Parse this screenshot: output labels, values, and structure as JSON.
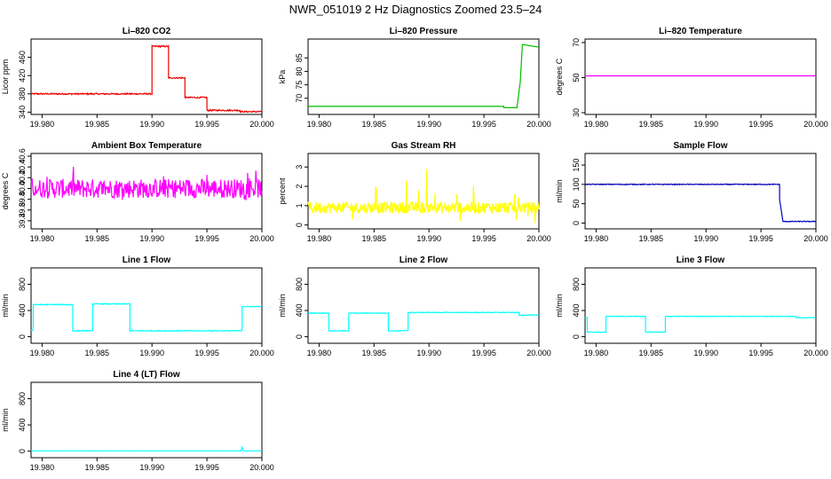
{
  "figure_title": "NWR_051019  2 Hz Diagnostics Zoomed 23.5–24",
  "chart_data": [
    {
      "type": "line",
      "title": "Li–820 CO2",
      "ylabel": "Licor ppm",
      "color": "#ee0000",
      "xlim": [
        19.979,
        20.0
      ],
      "ylim": [
        335,
        500
      ],
      "xticks": [
        "19.980",
        "19.985",
        "19.990",
        "19.995",
        "20.000"
      ],
      "yticks": [
        "340",
        "380",
        "420",
        "460"
      ],
      "series": [
        {
          "name": "CO2",
          "x": [
            19.979,
            19.99,
            19.99,
            19.9915,
            19.9915,
            19.993,
            19.993,
            19.995,
            19.995,
            19.998,
            19.998,
            20.0
          ],
          "y": [
            380,
            380,
            484,
            484,
            415,
            415,
            372,
            372,
            344,
            344,
            341,
            341
          ],
          "noise": 1.5
        }
      ]
    },
    {
      "type": "line",
      "title": "Li–820 Pressure",
      "ylabel": "kPa",
      "color": "#00bb00",
      "xlim": [
        19.979,
        20.0
      ],
      "ylim": [
        64,
        92
      ],
      "xticks": [
        "19.980",
        "19.985",
        "19.990",
        "19.995",
        "20.000"
      ],
      "yticks": [
        "70",
        "75",
        "80",
        "85"
      ],
      "series": [
        {
          "name": "Pressure",
          "x": [
            19.979,
            19.9968,
            19.9968,
            19.998,
            19.9983,
            19.9985,
            19.9992,
            20.0
          ],
          "y": [
            67,
            67,
            66.5,
            66.5,
            76,
            90,
            89.5,
            89
          ],
          "noise": 0
        }
      ]
    },
    {
      "type": "line",
      "title": "Li–820 Temperature",
      "ylabel": "degrees C",
      "color": "#ff00ff",
      "xlim": [
        19.979,
        20.0
      ],
      "ylim": [
        29,
        72
      ],
      "xticks": [
        "19.980",
        "19.985",
        "19.990",
        "19.995",
        "20.000"
      ],
      "yticks": [
        "30",
        "50",
        "70"
      ],
      "series": [
        {
          "name": "Temperature",
          "x": [
            19.979,
            20.0
          ],
          "y": [
            51,
            51
          ],
          "noise": 0
        }
      ]
    },
    {
      "type": "line",
      "title": "Ambient Box Temperature",
      "ylabel": "degrees C",
      "color": "#ff00ff",
      "xlim": [
        19.979,
        20.0
      ],
      "ylim": [
        39.25,
        40.65
      ],
      "xticks": [
        "19.980",
        "19.985",
        "19.990",
        "19.995",
        "20.000"
      ],
      "yticks": [
        "39.4",
        "39.6",
        "39.8",
        "40.0",
        "40.2",
        "40.4",
        "40.6"
      ],
      "series": [
        {
          "name": "Box Temp",
          "x": [
            19.979,
            20.0
          ],
          "y": [
            40.0,
            40.0
          ],
          "noise": 0.18,
          "spikes": 0.38
        }
      ]
    },
    {
      "type": "line",
      "title": "Gas Stream RH",
      "ylabel": "percent",
      "color": "#ffff00",
      "xlim": [
        19.979,
        20.0
      ],
      "ylim": [
        -0.2,
        3.7
      ],
      "xticks": [
        "19.980",
        "19.985",
        "19.990",
        "19.995",
        "20.000"
      ],
      "yticks": [
        "0",
        "1",
        "2",
        "3"
      ],
      "series": [
        {
          "name": "RH",
          "x": [
            19.979,
            20.0
          ],
          "y": [
            0.9,
            0.9
          ],
          "noise": 0.3,
          "spikes": 2.6,
          "floor": 0
        }
      ]
    },
    {
      "type": "line",
      "title": "Sample Flow",
      "ylabel": "ml/min",
      "color": "#0000bb",
      "xlim": [
        19.979,
        20.0
      ],
      "ylim": [
        -15,
        180
      ],
      "xticks": [
        "19.980",
        "19.985",
        "19.990",
        "19.995",
        "20.000"
      ],
      "yticks": [
        "0",
        "50",
        "100",
        "150"
      ],
      "series": [
        {
          "name": "Sample Flow",
          "x": [
            19.979,
            19.9967,
            19.9967,
            19.997,
            19.997,
            20.0
          ],
          "y": [
            100,
            100,
            60,
            5,
            4,
            4
          ],
          "noise": 1
        }
      ]
    },
    {
      "type": "line",
      "title": "Line 1 Flow",
      "ylabel": "ml/min",
      "color": "#00ffff",
      "xlim": [
        19.979,
        20.0
      ],
      "ylim": [
        -100,
        1050
      ],
      "xticks": [
        "19.980",
        "19.985",
        "19.990",
        "19.995",
        "20.000"
      ],
      "yticks": [
        "0",
        "400",
        "800"
      ],
      "series": [
        {
          "name": "Line 1",
          "x": [
            19.979,
            19.9792,
            19.9792,
            19.9828,
            19.9828,
            19.9846,
            19.9846,
            19.988,
            19.988,
            19.9982,
            19.9982,
            20.0
          ],
          "y": [
            100,
            100,
            490,
            490,
            90,
            90,
            500,
            500,
            90,
            90,
            460,
            460
          ],
          "noise": 6
        }
      ]
    },
    {
      "type": "line",
      "title": "Line 2 Flow",
      "ylabel": "ml/min",
      "color": "#00ffff",
      "xlim": [
        19.979,
        20.0
      ],
      "ylim": [
        -100,
        1050
      ],
      "xticks": [
        "19.980",
        "19.985",
        "19.990",
        "19.995",
        "20.000"
      ],
      "yticks": [
        "0",
        "400",
        "800"
      ],
      "series": [
        {
          "name": "Line 2",
          "x": [
            19.979,
            19.9809,
            19.9809,
            19.9827,
            19.9827,
            19.9863,
            19.9863,
            19.9881,
            19.9881,
            19.9982,
            19.9982,
            20.0
          ],
          "y": [
            360,
            360,
            90,
            90,
            360,
            360,
            90,
            90,
            370,
            370,
            330,
            330
          ],
          "noise": 5
        }
      ]
    },
    {
      "type": "line",
      "title": "Line 3 Flow",
      "ylabel": "ml/min",
      "color": "#00ffff",
      "xlim": [
        19.979,
        20.0
      ],
      "ylim": [
        -100,
        1050
      ],
      "xticks": [
        "19.980",
        "19.985",
        "19.990",
        "19.995",
        "20.000"
      ],
      "yticks": [
        "0",
        "400",
        "800"
      ],
      "series": [
        {
          "name": "Line 3",
          "x": [
            19.979,
            19.9792,
            19.9792,
            19.9809,
            19.9809,
            19.9845,
            19.9845,
            19.9863,
            19.9863,
            19.9982,
            19.9982,
            20.0
          ],
          "y": [
            290,
            290,
            70,
            70,
            310,
            310,
            70,
            70,
            310,
            310,
            290,
            290
          ],
          "noise": 4
        }
      ]
    },
    {
      "type": "line",
      "title": "Line 4 (LT) Flow",
      "ylabel": "ml/min",
      "color": "#00ffff",
      "xlim": [
        19.979,
        20.0
      ],
      "ylim": [
        -100,
        1050
      ],
      "xticks": [
        "19.980",
        "19.985",
        "19.990",
        "19.995",
        "20.000"
      ],
      "yticks": [
        "0",
        "400",
        "800"
      ],
      "series": [
        {
          "name": "Line 4",
          "x": [
            19.979,
            19.9981,
            19.9982,
            19.99825,
            19.9983,
            20.0
          ],
          "y": [
            5,
            5,
            70,
            30,
            5,
            5
          ],
          "noise": 1
        }
      ]
    }
  ]
}
